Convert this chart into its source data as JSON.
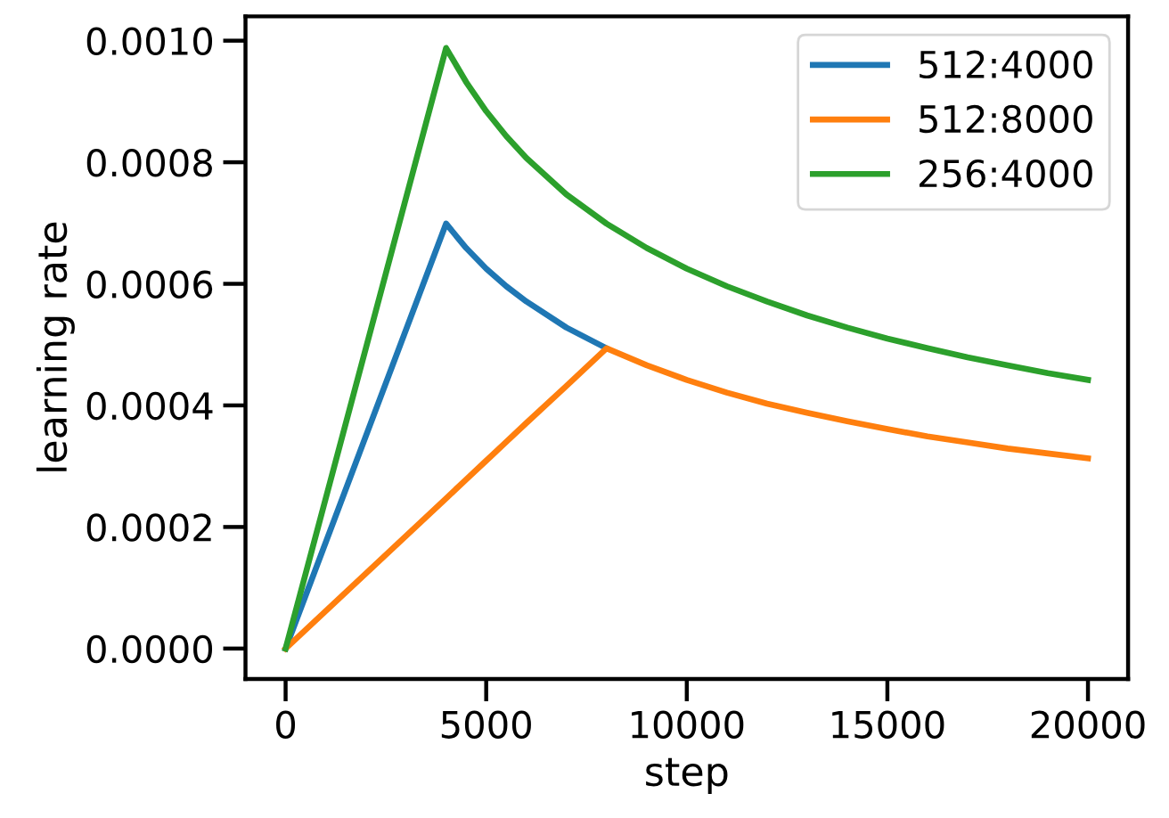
{
  "chart_data": {
    "type": "line",
    "xlabel": "step",
    "ylabel": "learning rate",
    "x": [
      0,
      4000,
      4500,
      5000,
      5500,
      6000,
      7000,
      8000,
      9000,
      10000,
      11000,
      12000,
      13000,
      14000,
      15000,
      16000,
      17000,
      18000,
      19000,
      20000
    ],
    "series": [
      {
        "name": "512:4000",
        "color": "#1f77b4",
        "values": [
          0,
          0.000699,
          0.000659,
          0.000625,
          0.000596,
          0.000571,
          0.000528,
          0.000494,
          null,
          null,
          null,
          null,
          null,
          null,
          null,
          null,
          null,
          null,
          null,
          null
        ]
      },
      {
        "name": "512:8000",
        "color": "#ff7f0e",
        "values": [
          0,
          0.000247,
          0.000278,
          0.000309,
          0.00034,
          0.000371,
          0.000432,
          0.000494,
          0.000466,
          0.000442,
          0.000421,
          0.000403,
          0.000388,
          0.000374,
          0.000361,
          0.000349,
          0.000339,
          0.000329,
          0.000321,
          0.000313
        ]
      },
      {
        "name": "256:4000",
        "color": "#2ca02c",
        "values": [
          0,
          0.000988,
          0.000932,
          0.000884,
          0.000843,
          0.000807,
          0.000747,
          0.000699,
          0.000659,
          0.000625,
          0.000596,
          0.000571,
          0.000548,
          0.000528,
          0.00051,
          0.000494,
          0.000479,
          0.000466,
          0.000453,
          0.000442
        ]
      }
    ],
    "xlim": [
      -1000,
      21000
    ],
    "xticks": [
      0,
      5000,
      10000,
      15000,
      20000
    ],
    "ylim": [
      -5e-05,
      0.00104
    ],
    "yticks": [
      {
        "value": 0,
        "label": "0.0000"
      },
      {
        "value": 0.0002,
        "label": "0.0002"
      },
      {
        "value": 0.0004,
        "label": "0.0004"
      },
      {
        "value": 0.0006,
        "label": "0.0006"
      },
      {
        "value": 0.0008,
        "label": "0.0008"
      },
      {
        "value": 0.001,
        "label": "0.0010"
      }
    ],
    "grid": false,
    "legend": "top right",
    "marker": "none",
    "line_style": "solid"
  }
}
